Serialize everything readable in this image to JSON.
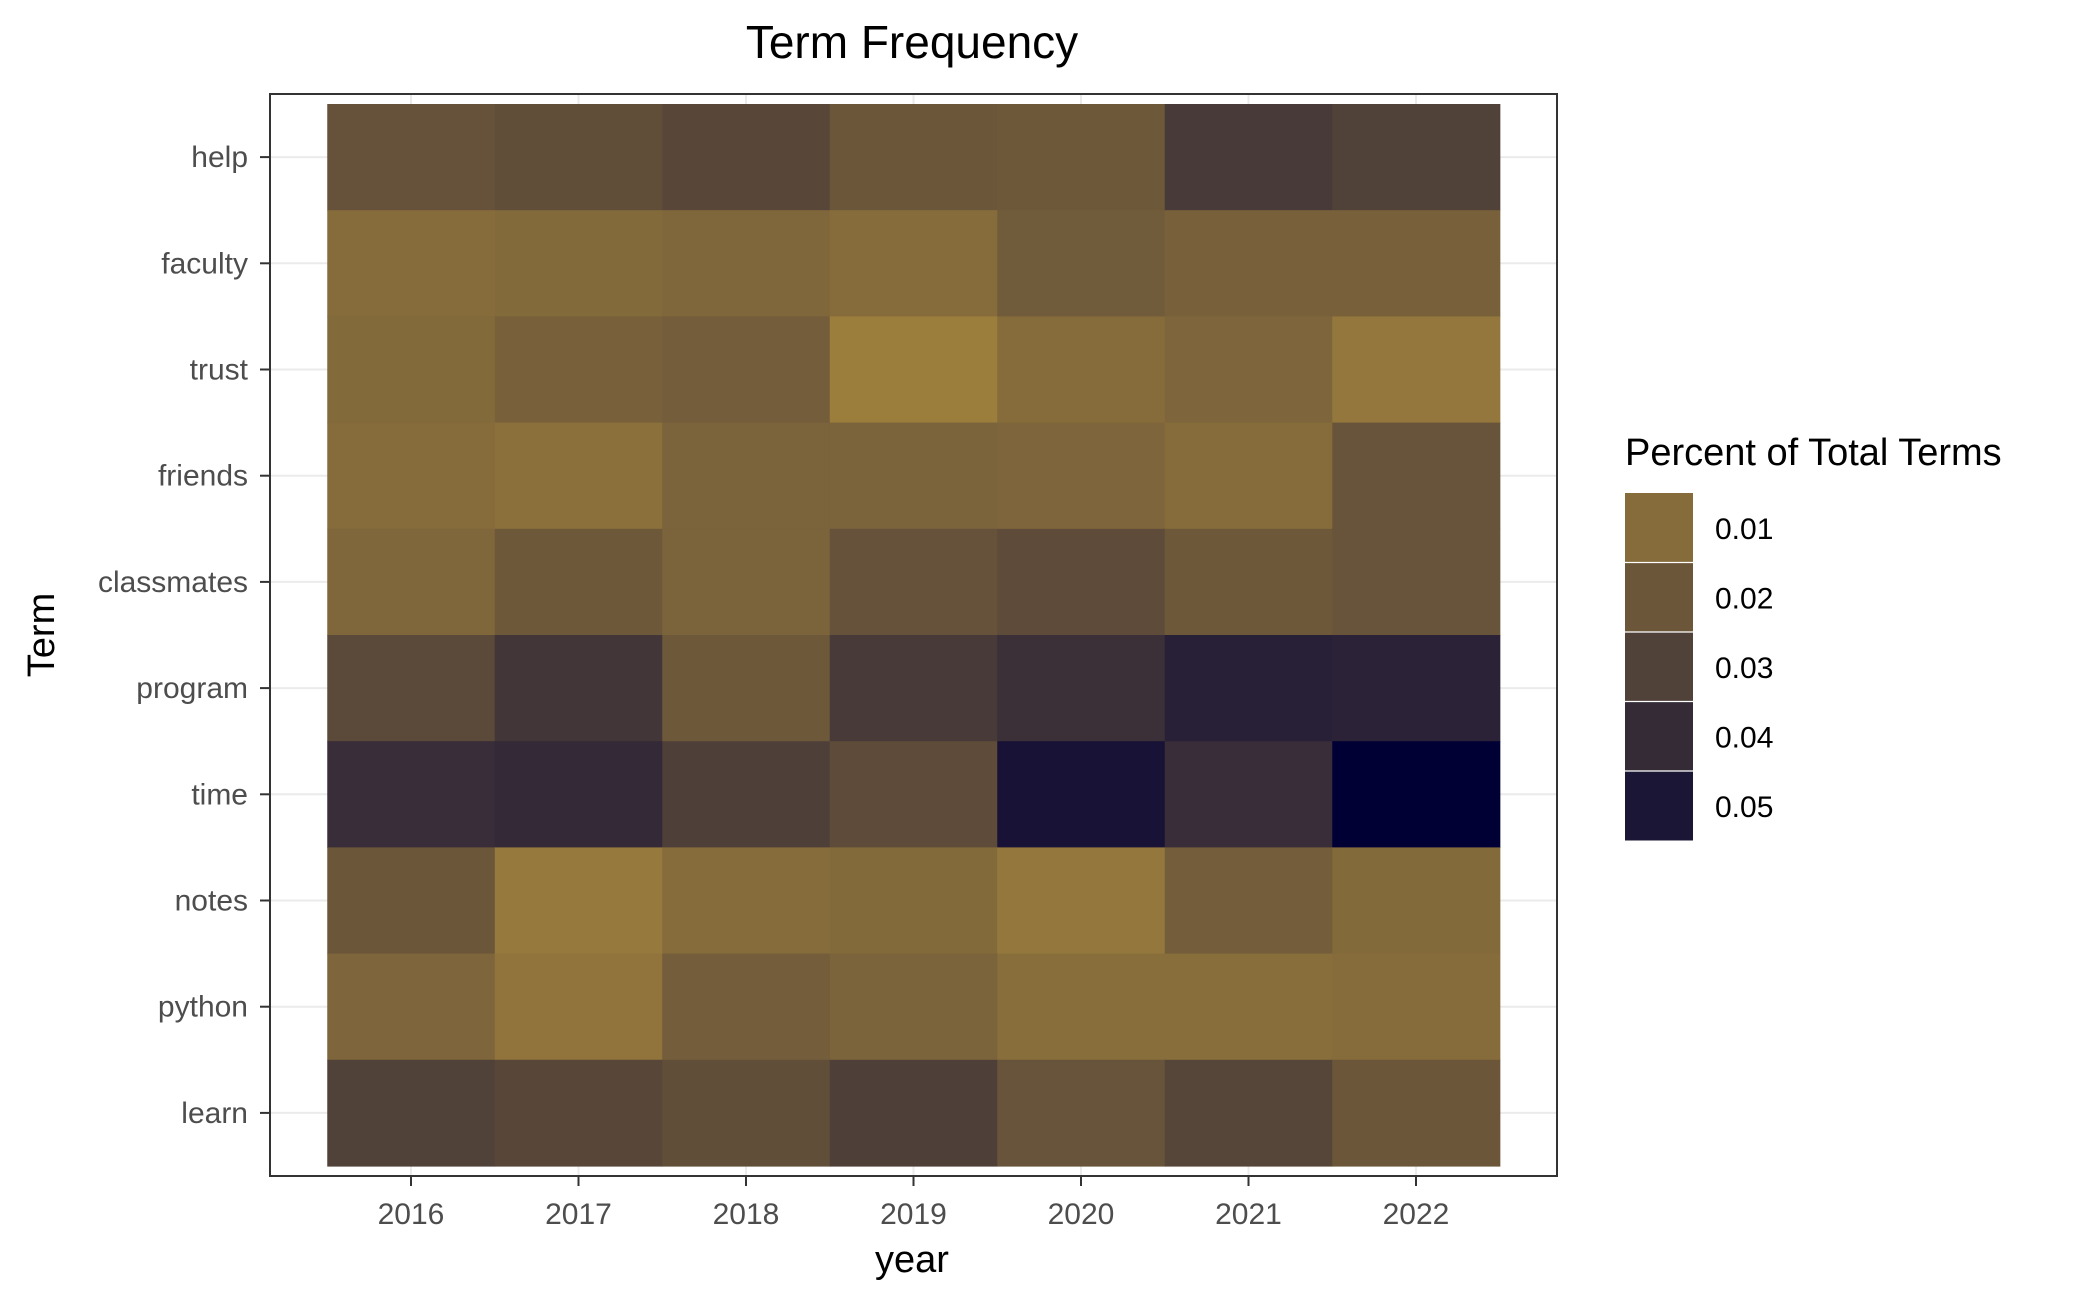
{
  "chart_data": {
    "type": "heatmap",
    "title": "Term Frequency",
    "xlabel": "year",
    "ylabel": "Term",
    "x": [
      "2016",
      "2017",
      "2018",
      "2019",
      "2020",
      "2021",
      "2022"
    ],
    "y": [
      "help",
      "faculty",
      "trust",
      "friends",
      "classmates",
      "program",
      "time",
      "notes",
      "python",
      "learn"
    ],
    "values": [
      [
        0.022,
        0.024,
        0.027,
        0.02,
        0.019,
        0.033,
        0.03
      ],
      [
        0.01,
        0.011,
        0.012,
        0.01,
        0.018,
        0.015,
        0.015
      ],
      [
        0.011,
        0.015,
        0.017,
        0.002,
        0.01,
        0.013,
        0.005
      ],
      [
        0.01,
        0.008,
        0.014,
        0.014,
        0.013,
        0.01,
        0.021
      ],
      [
        0.012,
        0.019,
        0.014,
        0.022,
        0.025,
        0.019,
        0.021
      ],
      [
        0.026,
        0.035,
        0.019,
        0.033,
        0.038,
        0.045,
        0.044
      ],
      [
        0.039,
        0.041,
        0.031,
        0.025,
        0.051,
        0.039,
        0.06
      ],
      [
        0.02,
        0.004,
        0.01,
        0.011,
        0.005,
        0.017,
        0.011
      ],
      [
        0.013,
        0.006,
        0.017,
        0.014,
        0.009,
        0.009,
        0.01
      ],
      [
        0.03,
        0.027,
        0.024,
        0.031,
        0.021,
        0.028,
        0.02
      ]
    ],
    "legend": {
      "title": "Percent of Total Terms",
      "labels": [
        "0.01",
        "0.02",
        "0.03",
        "0.04",
        "0.05"
      ],
      "breaks": [
        0.01,
        0.02,
        0.03,
        0.04,
        0.05
      ],
      "position": "right"
    },
    "color_scale": {
      "low": "#9b7d3c",
      "high": "#000035",
      "low_value": 0.002,
      "high_value": 0.06
    },
    "grid": true
  }
}
